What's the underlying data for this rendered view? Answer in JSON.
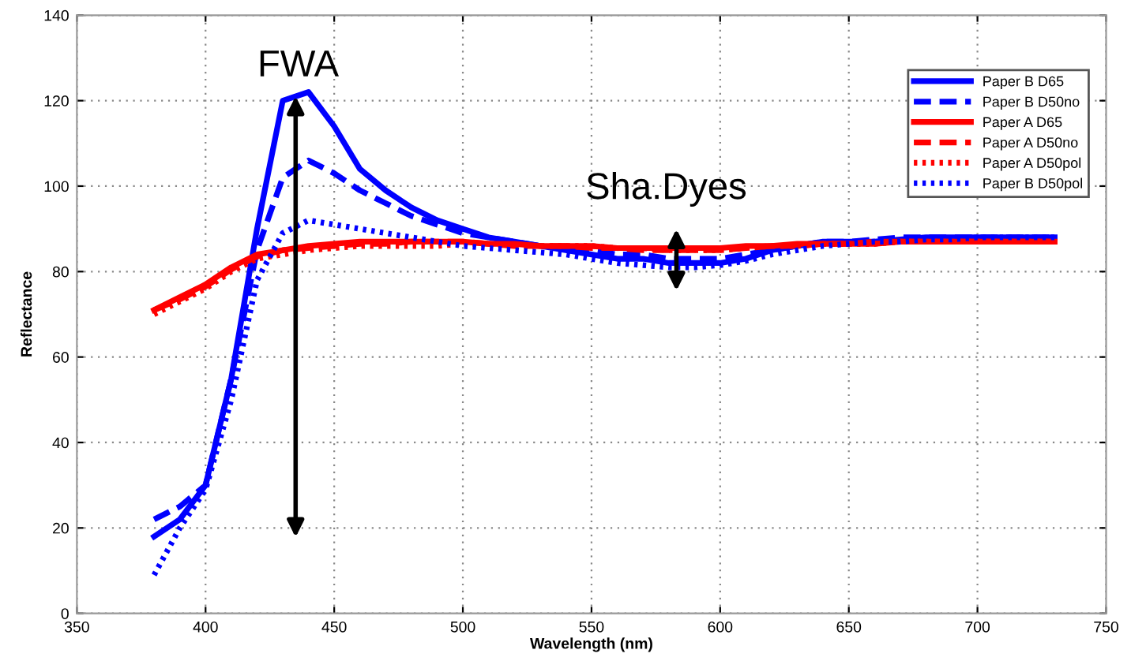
{
  "chart_data": {
    "type": "line",
    "xlabel": "Wavelength (nm)",
    "ylabel": "Reflectance",
    "x": [
      380,
      390,
      400,
      410,
      420,
      430,
      440,
      450,
      460,
      470,
      480,
      490,
      500,
      510,
      520,
      530,
      540,
      550,
      560,
      570,
      580,
      590,
      600,
      610,
      620,
      630,
      640,
      650,
      660,
      670,
      680,
      690,
      700,
      710,
      720,
      730
    ],
    "series": [
      {
        "name": "Paper B D65",
        "color": "#0000ff",
        "line_style": "solid",
        "values": [
          18,
          22,
          30,
          55,
          90,
          120,
          122,
          114,
          104,
          99,
          95,
          92,
          90,
          88,
          87,
          86,
          85,
          84,
          83,
          83,
          82,
          82,
          82,
          83,
          85,
          86,
          87,
          87,
          87,
          87.5,
          88,
          88,
          88,
          88,
          88,
          88
        ]
      },
      {
        "name": "Paper B D50no",
        "color": "#0000ff",
        "line_style": "dashed",
        "values": [
          22,
          25,
          30,
          55,
          85,
          102,
          106,
          103,
          99,
          96,
          93,
          91,
          89,
          88,
          87,
          86,
          85.5,
          85,
          84,
          84,
          83,
          83,
          83,
          84,
          85,
          86,
          87,
          87,
          87.5,
          88,
          88,
          88,
          88,
          88,
          88,
          88
        ]
      },
      {
        "name": "Paper A D65",
        "color": "#ff0000",
        "line_style": "solid",
        "values": [
          71,
          74,
          77,
          81,
          84,
          85,
          86,
          86.5,
          87,
          87,
          87,
          87,
          87,
          86.5,
          86.5,
          86,
          86,
          86,
          85.5,
          85.5,
          85.5,
          85.5,
          85.5,
          86,
          86,
          86.5,
          86.5,
          86.5,
          86.5,
          87,
          87,
          87,
          87,
          87,
          87,
          87
        ]
      },
      {
        "name": "Paper A D50no",
        "color": "#ff0000",
        "line_style": "dashed",
        "values": [
          71,
          73.5,
          76.5,
          80.5,
          83.5,
          85,
          85.5,
          86,
          86.5,
          86.5,
          87,
          87,
          87,
          86.5,
          86,
          86,
          86,
          85.5,
          85.5,
          85,
          85,
          85,
          85,
          85.5,
          86,
          86,
          86.5,
          86.5,
          87,
          87,
          87,
          87,
          87,
          87,
          87,
          87
        ]
      },
      {
        "name": "Paper A D50pol",
        "color": "#ff0000",
        "line_style": "dotted",
        "values": [
          70,
          73,
          76,
          80,
          83,
          84,
          85,
          85.5,
          86,
          86,
          86,
          86,
          86.5,
          86.5,
          86,
          86,
          86,
          86,
          85.5,
          85.5,
          85,
          85,
          85,
          85.5,
          86,
          86,
          86.5,
          86.5,
          86.5,
          87,
          87,
          87,
          87,
          87,
          87,
          87
        ]
      },
      {
        "name": "Paper B D50pol",
        "color": "#0000ff",
        "line_style": "dotted",
        "values": [
          9,
          20,
          29,
          50,
          78,
          89,
          92,
          91,
          90,
          89,
          88,
          87,
          86,
          85.5,
          85,
          84.5,
          84,
          83,
          82,
          81.5,
          81,
          81,
          81.5,
          82.5,
          84,
          85,
          86,
          86.5,
          87,
          87,
          87.5,
          87.5,
          88,
          88,
          88,
          88
        ]
      }
    ],
    "xlim": [
      350,
      750
    ],
    "ylim": [
      0,
      140
    ],
    "xticks": [
      350,
      400,
      450,
      500,
      550,
      600,
      650,
      700,
      750
    ],
    "yticks": [
      0,
      20,
      40,
      60,
      80,
      100,
      120,
      140
    ],
    "grid": true,
    "legend": "top right",
    "marker": "none",
    "annotations": [
      "FWA",
      "Sha.Dyes"
    ]
  }
}
